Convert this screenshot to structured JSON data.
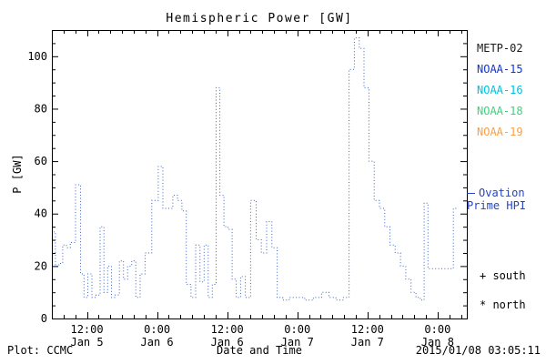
{
  "title": "Hemispheric Power [GW]",
  "ylabel": "P [GW]",
  "xlabel": "Date and Time",
  "footer": {
    "left": "Plot: CCMC",
    "right": "2015/01/08 03:05:11"
  },
  "legend": {
    "satellites": [
      {
        "label": "METP-02",
        "color": "#1a1a1a"
      },
      {
        "label": "NOAA-15",
        "color": "#1535cc"
      },
      {
        "label": "NOAA-16",
        "color": "#00c0e0"
      },
      {
        "label": "NOAA-18",
        "color": "#3fd07f"
      },
      {
        "label": "NOAA-19",
        "color": "#f5a04a"
      }
    ],
    "ovation_label": "Ovation",
    "prime_label": "Prime HPI",
    "note_color": "#2244cc",
    "south_label": "+ south",
    "north_label": "* north"
  },
  "chart_data": {
    "type": "line",
    "title": "Hemispheric Power [GW]",
    "xlabel": "Date and Time",
    "ylabel": "P [GW]",
    "line_style": "dotted-steps",
    "line_color": "#3a62c8",
    "grid": false,
    "x_unit": "hours since 2015-01-05 00:00",
    "xlim": [
      6,
      77
    ],
    "ylim": [
      0,
      110
    ],
    "y_ticks": [
      0,
      20,
      40,
      60,
      80,
      100
    ],
    "x_ticks": [
      {
        "h": 12,
        "time": "12:00",
        "date": "Jan 5"
      },
      {
        "h": 24,
        "time": "0:00",
        "date": "Jan 6"
      },
      {
        "h": 36,
        "time": "12:00",
        "date": "Jan 6"
      },
      {
        "h": 48,
        "time": "0:00",
        "date": "Jan 7"
      },
      {
        "h": 60,
        "time": "12:00",
        "date": "Jan 7"
      },
      {
        "h": 72,
        "time": "0:00",
        "date": "Jan 8"
      }
    ],
    "points": [
      [
        6.3,
        33
      ],
      [
        6.9,
        20
      ],
      [
        7.5,
        21
      ],
      [
        8.2,
        28
      ],
      [
        8.8,
        27
      ],
      [
        9.5,
        29
      ],
      [
        10.6,
        51
      ],
      [
        11.2,
        17
      ],
      [
        11.8,
        8
      ],
      [
        12.5,
        17
      ],
      [
        13.2,
        8
      ],
      [
        13.9,
        9
      ],
      [
        14.6,
        35
      ],
      [
        15.2,
        10
      ],
      [
        15.9,
        20
      ],
      [
        16.5,
        8
      ],
      [
        17.2,
        9
      ],
      [
        17.9,
        22
      ],
      [
        18.6,
        15
      ],
      [
        19.3,
        20
      ],
      [
        20.0,
        22
      ],
      [
        20.7,
        8
      ],
      [
        21.5,
        17
      ],
      [
        22.4,
        25
      ],
      [
        23.8,
        45
      ],
      [
        24.6,
        58
      ],
      [
        25.4,
        42
      ],
      [
        26.3,
        42
      ],
      [
        27.1,
        47
      ],
      [
        27.9,
        45
      ],
      [
        28.6,
        41
      ],
      [
        29.4,
        13
      ],
      [
        30.2,
        8
      ],
      [
        31.0,
        28
      ],
      [
        31.7,
        14
      ],
      [
        32.4,
        28
      ],
      [
        33.1,
        8
      ],
      [
        33.8,
        13
      ],
      [
        34.4,
        88
      ],
      [
        35.1,
        47
      ],
      [
        35.8,
        35
      ],
      [
        36.5,
        34
      ],
      [
        37.2,
        15
      ],
      [
        37.9,
        8
      ],
      [
        38.7,
        16
      ],
      [
        39.5,
        8
      ],
      [
        40.5,
        45
      ],
      [
        41.4,
        30
      ],
      [
        42.3,
        25
      ],
      [
        43.2,
        37
      ],
      [
        44.1,
        27
      ],
      [
        45.0,
        8
      ],
      [
        46.0,
        7
      ],
      [
        47.2,
        8
      ],
      [
        48.5,
        8
      ],
      [
        50.0,
        7
      ],
      [
        51.5,
        8
      ],
      [
        52.8,
        10
      ],
      [
        54.0,
        8
      ],
      [
        55.2,
        7
      ],
      [
        56.4,
        8
      ],
      [
        57.3,
        95
      ],
      [
        58.2,
        107
      ],
      [
        59.0,
        103
      ],
      [
        59.8,
        88
      ],
      [
        60.7,
        60
      ],
      [
        61.6,
        45
      ],
      [
        62.5,
        42
      ],
      [
        63.4,
        35
      ],
      [
        64.3,
        28
      ],
      [
        65.2,
        25
      ],
      [
        66.1,
        20
      ],
      [
        67.0,
        15
      ],
      [
        67.9,
        10
      ],
      [
        68.7,
        8
      ],
      [
        69.4,
        7
      ],
      [
        70.0,
        44
      ],
      [
        70.7,
        19
      ],
      [
        71.8,
        19
      ],
      [
        73.0,
        19
      ],
      [
        74.2,
        19
      ],
      [
        75.2,
        42
      ]
    ]
  }
}
